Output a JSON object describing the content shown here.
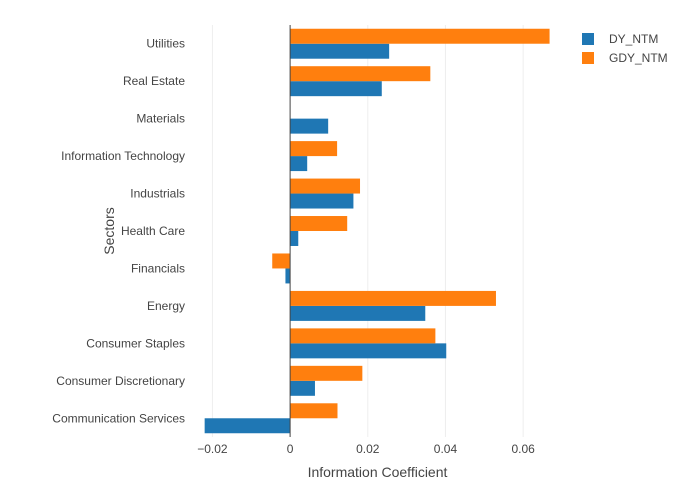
{
  "chart_data": {
    "type": "bar",
    "orientation": "horizontal",
    "title": "",
    "xlabel": "Information Coefficient",
    "ylabel": "Sectors",
    "categories": [
      "Communication Services",
      "Consumer Discretionary",
      "Consumer Staples",
      "Energy",
      "Financials",
      "Health Care",
      "Industrials",
      "Information Technology",
      "Materials",
      "Real Estate",
      "Utilities"
    ],
    "series": [
      {
        "name": "DY_NTM",
        "color": "#1f77b4",
        "values": [
          -0.022,
          0.0064,
          0.0402,
          0.0348,
          -0.0012,
          0.0021,
          0.0163,
          0.0044,
          0.0098,
          0.0236,
          0.0255
        ]
      },
      {
        "name": "GDY_NTM",
        "color": "#ff7f0e",
        "values": [
          0.0122,
          0.0186,
          0.0374,
          0.053,
          -0.0046,
          0.0147,
          0.018,
          0.0121,
          0.0,
          0.0361,
          0.0668
        ]
      }
    ],
    "xlim": [
      -0.025,
      0.07
    ],
    "xticks": [
      -0.02,
      0,
      0.02,
      0.04,
      0.06
    ],
    "xtick_labels": [
      "−0.02",
      "0",
      "0.02",
      "0.04",
      "0.06"
    ],
    "grid": true,
    "legend_position": "top-right"
  }
}
